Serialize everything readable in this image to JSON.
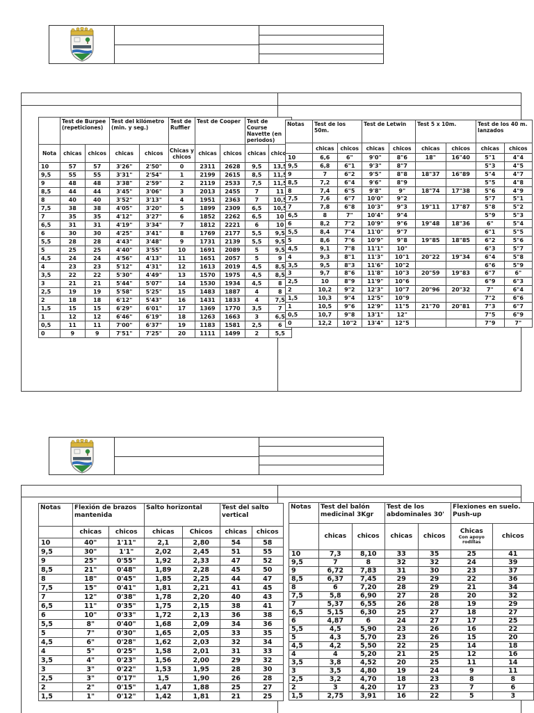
{
  "logo": {
    "name": "school-crest",
    "colors": {
      "gold": "#d9b43a",
      "green": "#2e8b3d",
      "blue": "#2f6db8",
      "banner": "#4a5a66",
      "outline": "#7a7a7a"
    }
  },
  "tables": {
    "p1_left": {
      "groups": [
        [
          "",
          1
        ],
        [
          "Test de Burpee (repeticiones)",
          2
        ],
        [
          "Test del kilómetro (min. y seg.)",
          2
        ],
        [
          "Test de Ruffier",
          1
        ],
        [
          "Test de Cooper",
          2
        ],
        [
          "Test de Course Navette (en periodos)",
          2
        ]
      ],
      "subheaders": [
        "Nota",
        "chicas",
        "chicos",
        "chicas",
        "chicos",
        "Chicas y chicos",
        "chicas",
        "chicos",
        "chicas",
        "chicos"
      ],
      "rows": [
        [
          "10",
          "57",
          "57",
          "3'26\"",
          "2'50\"",
          "0",
          "2311",
          "2628",
          "9,5",
          "13,5"
        ],
        [
          "9,5",
          "55",
          "55",
          "3'31\"",
          "2'54\"",
          "1",
          "2199",
          "2615",
          "8,5",
          "11,5"
        ],
        [
          "9",
          "48",
          "48",
          "3'38\"",
          "2'59\"",
          "2",
          "2119",
          "2533",
          "7,5",
          "11,5"
        ],
        [
          "8,5",
          "44",
          "44",
          "3'45\"",
          "3'06\"",
          "3",
          "2013",
          "2455",
          "7",
          "11"
        ],
        [
          "8",
          "40",
          "40",
          "3'52\"",
          "3'13\"",
          "4",
          "1951",
          "2363",
          "7",
          "10,5"
        ],
        [
          "7,5",
          "38",
          "38",
          "4'05\"",
          "3'20\"",
          "5",
          "1899",
          "2309",
          "6,5",
          "10,5"
        ],
        [
          "7",
          "35",
          "35",
          "4'12\"",
          "3'27\"",
          "6",
          "1852",
          "2262",
          "6,5",
          "10"
        ],
        [
          "6,5",
          "31",
          "31",
          "4'19\"",
          "3'34\"",
          "7",
          "1812",
          "2221",
          "6",
          "10"
        ],
        [
          "6",
          "30",
          "30",
          "4'25\"",
          "3'41\"",
          "8",
          "1769",
          "2177",
          "5,5",
          "9,5"
        ],
        [
          "5,5",
          "28",
          "28",
          "4'43\"",
          "3'48\"",
          "9",
          "1731",
          "2139",
          "5,5",
          "9,5"
        ],
        [
          "5",
          "25",
          "25",
          "4'40\"",
          "3'55\"",
          "10",
          "1691",
          "2089",
          "5",
          "9,5"
        ],
        [
          "4,5",
          "24",
          "24",
          "4'56\"",
          "4'13\"",
          "11",
          "1651",
          "2057",
          "5",
          "9"
        ],
        [
          "4",
          "23",
          "23",
          "5'12\"",
          "4'31\"",
          "12",
          "1613",
          "2019",
          "4,5",
          "8,5"
        ],
        [
          "3,5",
          "22",
          "22",
          "5'30\"",
          "4'49\"",
          "13",
          "1570",
          "1975",
          "4,5",
          "8,5"
        ],
        [
          "3",
          "21",
          "21",
          "5'44\"",
          "5'07\"",
          "14",
          "1530",
          "1934",
          "4,5",
          "8"
        ],
        [
          "2,5",
          "19",
          "19",
          "5'58\"",
          "5'25\"",
          "15",
          "1483",
          "1887",
          "4",
          "8"
        ],
        [
          "2",
          "18",
          "18",
          "6'12\"",
          "5'43\"",
          "16",
          "1431",
          "1833",
          "4",
          "7,5"
        ],
        [
          "1,5",
          "15",
          "15",
          "6'29\"",
          "6'01\"",
          "17",
          "1369",
          "1770",
          "3,5",
          "7"
        ],
        [
          "1",
          "12",
          "12",
          "6'46\"",
          "6'19\"",
          "18",
          "1263",
          "1663",
          "3",
          "6,5"
        ],
        [
          "0,5",
          "11",
          "11",
          "7'00\"",
          "6'37\"",
          "19",
          "1183",
          "1581",
          "2,5",
          "6"
        ],
        [
          "0",
          "9",
          "9",
          "7'51\"",
          "7'25\"",
          "20",
          "1111",
          "1499",
          "2",
          "5,5"
        ]
      ]
    },
    "p1_right": {
      "groups": [
        [
          "Notas",
          1
        ],
        [
          "Test de los 50m.",
          2
        ],
        [
          "Test de Letwin",
          2
        ],
        [
          "Test 5 x 10m.",
          2
        ],
        [
          "Test de los 40 m. lanzados",
          2
        ]
      ],
      "subheaders": [
        "",
        "chicas",
        "chicos",
        "chicas",
        "chicos",
        "chicas",
        "chicos",
        "chicas",
        "chicos"
      ],
      "rows": [
        [
          "10",
          "6,6",
          "6\"",
          "9'0\"",
          "8\"6",
          "18\"",
          "16\"40",
          "5\"1",
          "4\"4"
        ],
        [
          "9,5",
          "6,8",
          "6\"1",
          "9'3\"",
          "8\"7",
          "",
          "",
          "5\"3",
          "4\"5"
        ],
        [
          "9",
          "7",
          "6\"2",
          "9'5\"",
          "8\"8",
          "18\"37",
          "16\"89",
          "5\"4",
          "4\"7"
        ],
        [
          "8,5",
          "7,2",
          "6\"4",
          "9'6\"",
          "8\"9",
          "",
          "",
          "5\"5",
          "4\"8"
        ],
        [
          "8",
          "7,4",
          "6\"5",
          "9'8\"",
          "9\"",
          "18\"74",
          "17\"38",
          "5\"6",
          "4\"9"
        ],
        [
          "7,5",
          "7,6",
          "6\"7",
          "10'0\"",
          "9\"2",
          "",
          "",
          "5\"7",
          "5\"1"
        ],
        [
          "7",
          "7,8",
          "6\"8",
          "10'3\"",
          "9\"3",
          "19\"11",
          "17\"87",
          "5\"8",
          "5\"2"
        ],
        [
          "6,5",
          "8",
          "7\"",
          "10'4\"",
          "9\"4",
          "",
          "",
          "5\"9",
          "5\"3"
        ],
        [
          "6",
          "8,2",
          "7\"2",
          "10'9\"",
          "9\"6",
          "19\"48",
          "18\"36",
          "6\"",
          "5\"4"
        ],
        [
          "5,5",
          "8,4",
          "7\"4",
          "11'0\"",
          "9\"7",
          "",
          "",
          "6\"1",
          "5\"5"
        ],
        [
          "5",
          "8,6",
          "7\"6",
          "10'9\"",
          "9\"8",
          "19\"85",
          "18\"85",
          "6\"2",
          "5\"6"
        ],
        [
          "4,5",
          "9,1",
          "7\"8",
          "11'1\"",
          "10\"",
          "",
          "",
          "6\"3",
          "5\"7"
        ],
        [
          "4",
          "9,3",
          "8\"1",
          "11'3\"",
          "10\"1",
          "20\"22",
          "19\"34",
          "6\"4",
          "5\"8"
        ],
        [
          "3,5",
          "9,5",
          "8\"3",
          "11'6\"",
          "10\"2",
          "",
          "",
          "6\"6",
          "5\"9"
        ],
        [
          "3",
          "9,7",
          "8\"6",
          "11'8\"",
          "10\"3",
          "20\"59",
          "19\"83",
          "6\"7",
          "6\""
        ],
        [
          "2,5",
          "10",
          "8\"9",
          "11'9\"",
          "10\"6",
          "",
          "",
          "6\"9",
          "6\"3"
        ],
        [
          "2",
          "10,2",
          "9\"2",
          "12'3\"",
          "10\"7",
          "20\"96",
          "20\"32",
          "7\"",
          "6\"4"
        ],
        [
          "1,5",
          "10,3",
          "9\"4",
          "12'5\"",
          "10\"9",
          "",
          "",
          "7\"2",
          "6\"6"
        ],
        [
          "1",
          "10,5",
          "9\"6",
          "12'9\"",
          "11\"5",
          "21\"70",
          "20\"81",
          "7\"3",
          "6\"7"
        ],
        [
          "0,5",
          "10,7",
          "9\"8",
          "13'1\"",
          "12\"",
          "",
          "",
          "7\"5",
          "6\"9"
        ],
        [
          "0",
          "12,2",
          "10\"2",
          "13'4\"",
          "12\"5",
          "",
          "",
          "7\"9",
          "7\""
        ]
      ]
    },
    "p2_left": {
      "groups": [
        [
          "Notas",
          1
        ],
        [
          "Flexión de brazos mantenida",
          2
        ],
        [
          "Salto horizontal",
          2
        ],
        [
          "Test del salto vertical",
          2
        ]
      ],
      "subheaders": [
        "",
        "chicas",
        "chicos",
        "chicas",
        "Chicos",
        "chicas",
        "chicos"
      ],
      "rows": [
        [
          "10",
          "40\"",
          "1'11\"",
          "2,1",
          "2,80",
          "54",
          "58"
        ],
        [
          "9,5",
          "30\"",
          "1'1\"",
          "2,02",
          "2,45",
          "51",
          "55"
        ],
        [
          "9",
          "25\"",
          "0'55\"",
          "1,92",
          "2,33",
          "47",
          "52"
        ],
        [
          "8,5",
          "21\"",
          "0'48\"",
          "1,89",
          "2,28",
          "45",
          "50"
        ],
        [
          "8",
          "18\"",
          "0'45\"",
          "1,85",
          "2,25",
          "44",
          "47"
        ],
        [
          "7,5",
          "15\"",
          "0'41\"",
          "1,81",
          "2,21",
          "41",
          "45"
        ],
        [
          "7",
          "12\"",
          "0'38\"",
          "1,78",
          "2,20",
          "40",
          "43"
        ],
        [
          "6,5",
          "11\"",
          "0'35\"",
          "1,75",
          "2,15",
          "38",
          "41"
        ],
        [
          "6",
          "10\"",
          "0'33\"",
          "1,72",
          "2,13",
          "36",
          "38"
        ],
        [
          "5,5",
          "8\"",
          "0'40\"",
          "1,68",
          "2,09",
          "34",
          "36"
        ],
        [
          "5",
          "7\"",
          "0'30\"",
          "1,65",
          "2,05",
          "33",
          "35"
        ],
        [
          "4,5",
          "6\"",
          "0'28\"",
          "1,62",
          "2,03",
          "32",
          "34"
        ],
        [
          "4",
          "5\"",
          "0'25\"",
          "1,58",
          "2,01",
          "31",
          "33"
        ],
        [
          "3,5",
          "4\"",
          "0'23\"",
          "1,56",
          "2,00",
          "29",
          "32"
        ],
        [
          "3",
          "3\"",
          "0'22\"",
          "1,53",
          "1,95",
          "28",
          "30"
        ],
        [
          "2,5",
          "3\"",
          "0'17\"",
          "1,5",
          "1,90",
          "26",
          "28"
        ],
        [
          "2",
          "2\"",
          "0'15\"",
          "1,47",
          "1,88",
          "25",
          "27"
        ],
        [
          "1,5",
          "1\"",
          "0'12\"",
          "1,42",
          "1,81",
          "21",
          "25"
        ]
      ]
    },
    "p2_right": {
      "groups": [
        [
          "Notas",
          1
        ],
        [
          "Test del balón medicinal 3Kgr",
          2
        ],
        [
          "Test de los abdominales 30'",
          2
        ],
        [
          "Flexiones en suelo. Push-up",
          2
        ]
      ],
      "subheaders": [
        "",
        "chicas",
        "chicos",
        "chicas",
        "chicos",
        [
          "Chicas",
          "Con apoyo rodillas"
        ],
        "chicos"
      ],
      "rows": [
        [
          "10",
          "7,3",
          "8,10",
          "33",
          "35",
          "25",
          "41"
        ],
        [
          "9,5",
          "7",
          "8",
          "32",
          "32",
          "24",
          "39"
        ],
        [
          "9",
          "6,72",
          "7,83",
          "31",
          "30",
          "23",
          "37"
        ],
        [
          "8,5",
          "6,37",
          "7,45",
          "29",
          "29",
          "22",
          "36"
        ],
        [
          "8",
          "6",
          "7,20",
          "28",
          "29",
          "21",
          "34"
        ],
        [
          "7,5",
          "5,8",
          "6,90",
          "27",
          "28",
          "20",
          "32"
        ],
        [
          "7",
          "5,37",
          "6,55",
          "26",
          "28",
          "19",
          "29"
        ],
        [
          "6,5",
          "5,15",
          "6,30",
          "25",
          "27",
          "18",
          "27"
        ],
        [
          "6",
          "4,87",
          "6",
          "24",
          "27",
          "17",
          "25"
        ],
        [
          "5,5",
          "4,5",
          "5,90",
          "23",
          "26",
          "16",
          "22"
        ],
        [
          "5",
          "4,3",
          "5,70",
          "23",
          "26",
          "15",
          "20"
        ],
        [
          "4,5",
          "4,2",
          "5,50",
          "22",
          "25",
          "14",
          "18"
        ],
        [
          "4",
          "4",
          "5,20",
          "21",
          "25",
          "12",
          "16"
        ],
        [
          "3,5",
          "3,8",
          "4,52",
          "20",
          "25",
          "11",
          "14"
        ],
        [
          "3",
          "3,5",
          "4,80",
          "19",
          "24",
          "9",
          "11"
        ],
        [
          "2,5",
          "3,2",
          "4,70",
          "18",
          "23",
          "8",
          "8"
        ],
        [
          "2",
          "3",
          "4,20",
          "17",
          "23",
          "7",
          "6"
        ],
        [
          "1,5",
          "2,75",
          "3,91",
          "16",
          "22",
          "5",
          "3"
        ]
      ]
    }
  }
}
